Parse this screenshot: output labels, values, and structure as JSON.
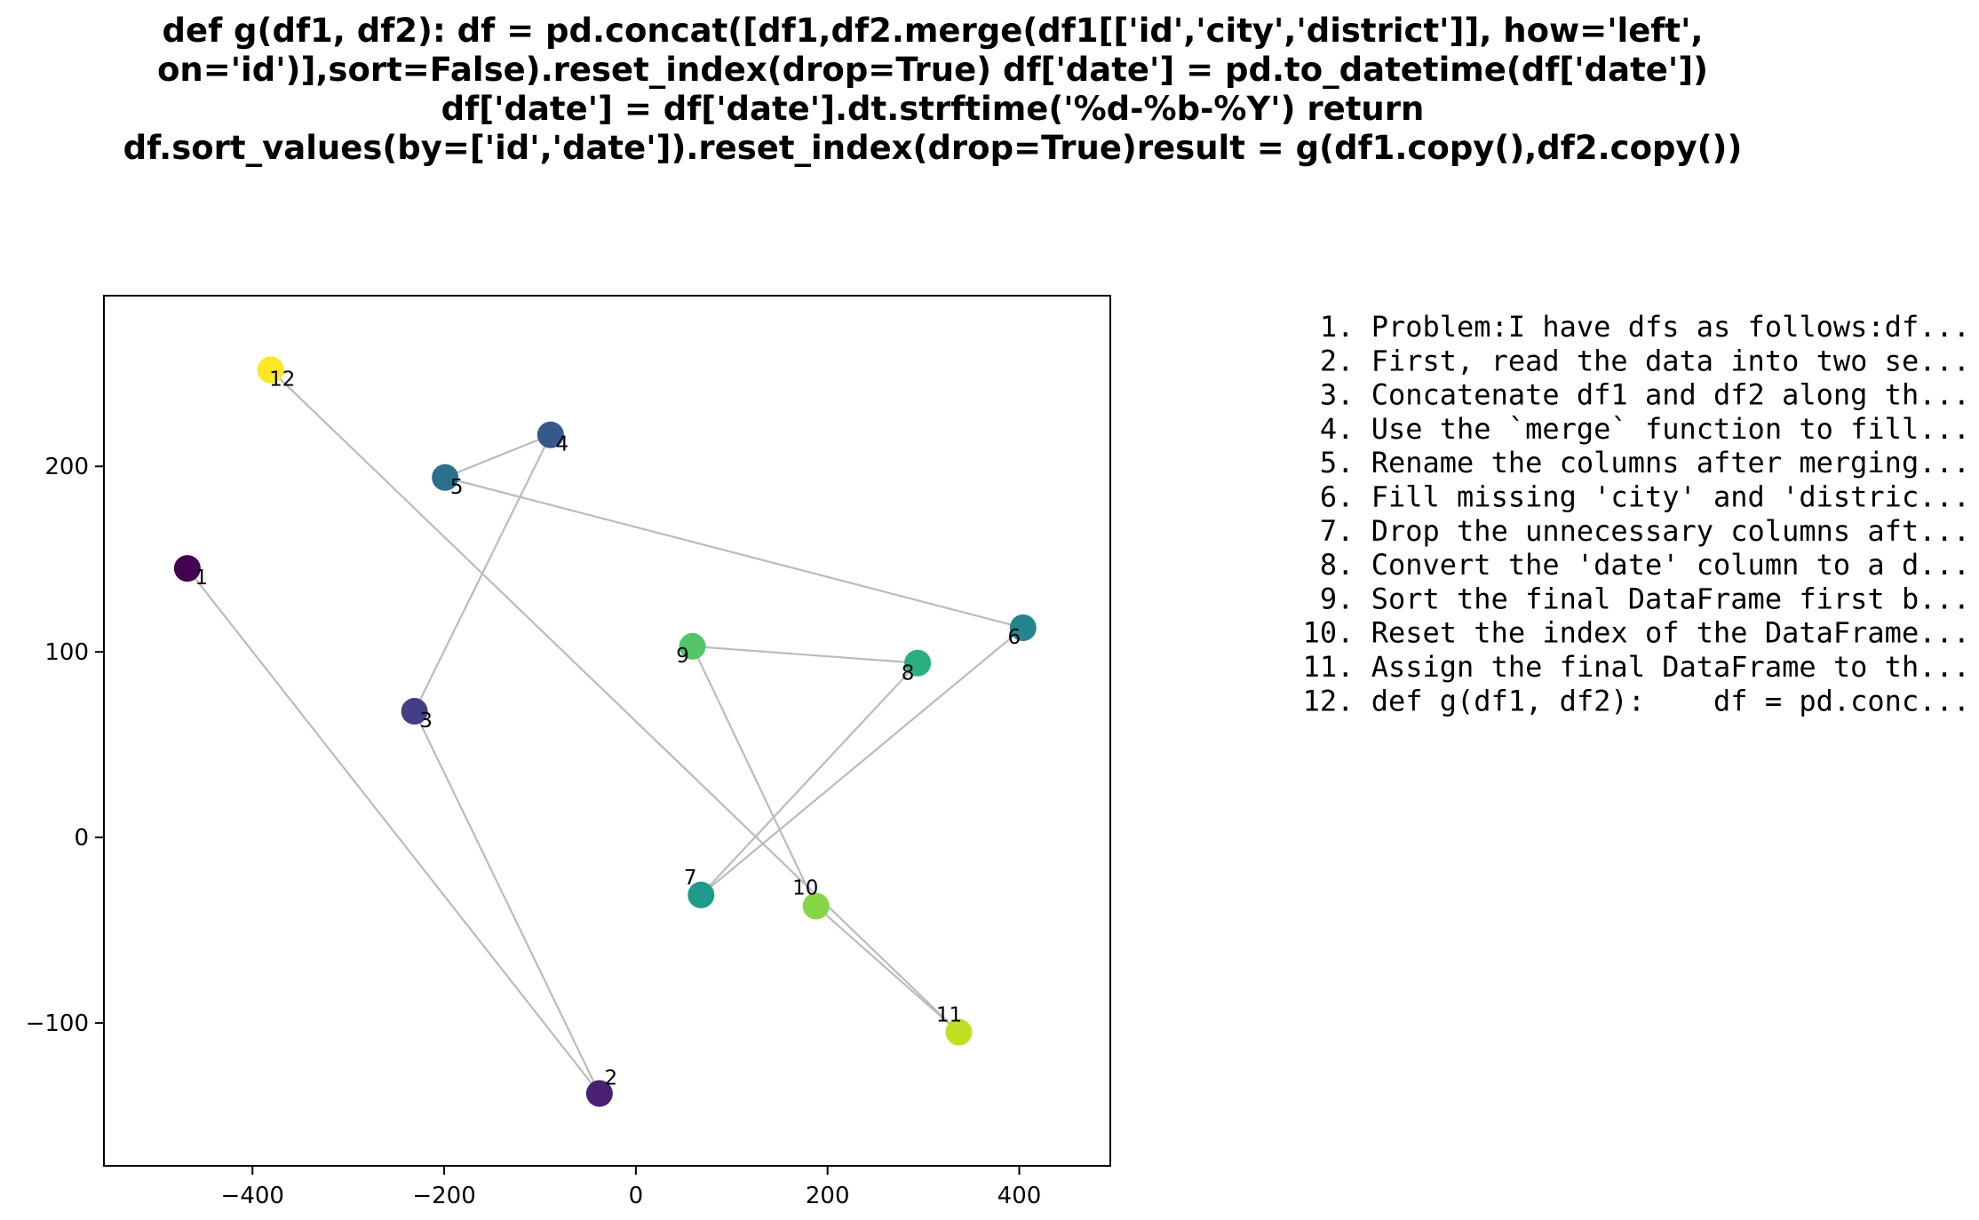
{
  "chart_data": {
    "type": "scatter",
    "title_lines": [
      "def g(df1, df2):    df = pd.concat([df1,df2.merge(df1[['id','city','district']], how='left',",
      "on='id')],sort=False).reset_index(drop=True)    df['date'] = pd.to_datetime(df['date'])",
      "df['date'] = df['date'].dt.strftime('%d-%b-%Y')    return",
      "df.sort_values(by=['id','date']).reset_index(drop=True)result = g(df1.copy(),df2.copy())"
    ],
    "xlim": [
      -555,
      495
    ],
    "ylim": [
      -177,
      292
    ],
    "xticks": [
      -400,
      -200,
      0,
      200,
      400
    ],
    "xtick_labels": [
      "−400",
      "−200",
      "0",
      "200",
      "400"
    ],
    "yticks": [
      -100,
      0,
      100,
      200
    ],
    "ytick_labels": [
      "−100",
      "0",
      "100",
      "200"
    ],
    "grid": false,
    "connect_in_order": true,
    "line_color": "#bbbbbb",
    "colormap": "viridis",
    "points": [
      {
        "label": "1",
        "x": -468,
        "y": 145,
        "color": "#440154"
      },
      {
        "label": "2",
        "x": -38,
        "y": -138,
        "color": "#482173"
      },
      {
        "label": "3",
        "x": -231,
        "y": 68,
        "color": "#433e85"
      },
      {
        "label": "4",
        "x": -89,
        "y": 217,
        "color": "#38588c"
      },
      {
        "label": "5",
        "x": -199,
        "y": 194,
        "color": "#2d708e"
      },
      {
        "label": "6",
        "x": 404,
        "y": 113,
        "color": "#25858e"
      },
      {
        "label": "7",
        "x": 68,
        "y": -31,
        "color": "#1e9b8a"
      },
      {
        "label": "8",
        "x": 294,
        "y": 94,
        "color": "#2ab07f"
      },
      {
        "label": "9",
        "x": 59,
        "y": 103,
        "color": "#52c569"
      },
      {
        "label": "10",
        "x": 188,
        "y": -37,
        "color": "#86d549"
      },
      {
        "label": "11",
        "x": 337,
        "y": -105,
        "color": "#c2df23"
      },
      {
        "label": "12",
        "x": -381,
        "y": 252,
        "color": "#fde725"
      }
    ],
    "steps": [
      " 1. Problem:I have dfs as follows:df...",
      " 2. First, read the data into two se...",
      " 3. Concatenate df1 and df2 along th...",
      " 4. Use the `merge` function to fill...",
      " 5. Rename the columns after merging...",
      " 6. Fill missing 'city' and 'distric...",
      " 7. Drop the unnecessary columns aft...",
      " 8. Convert the 'date' column to a d...",
      " 9. Sort the final DataFrame first b...",
      "10. Reset the index of the DataFrame...",
      "11. Assign the final DataFrame to th...",
      "12. def g(df1, df2):    df = pd.conc..."
    ]
  }
}
